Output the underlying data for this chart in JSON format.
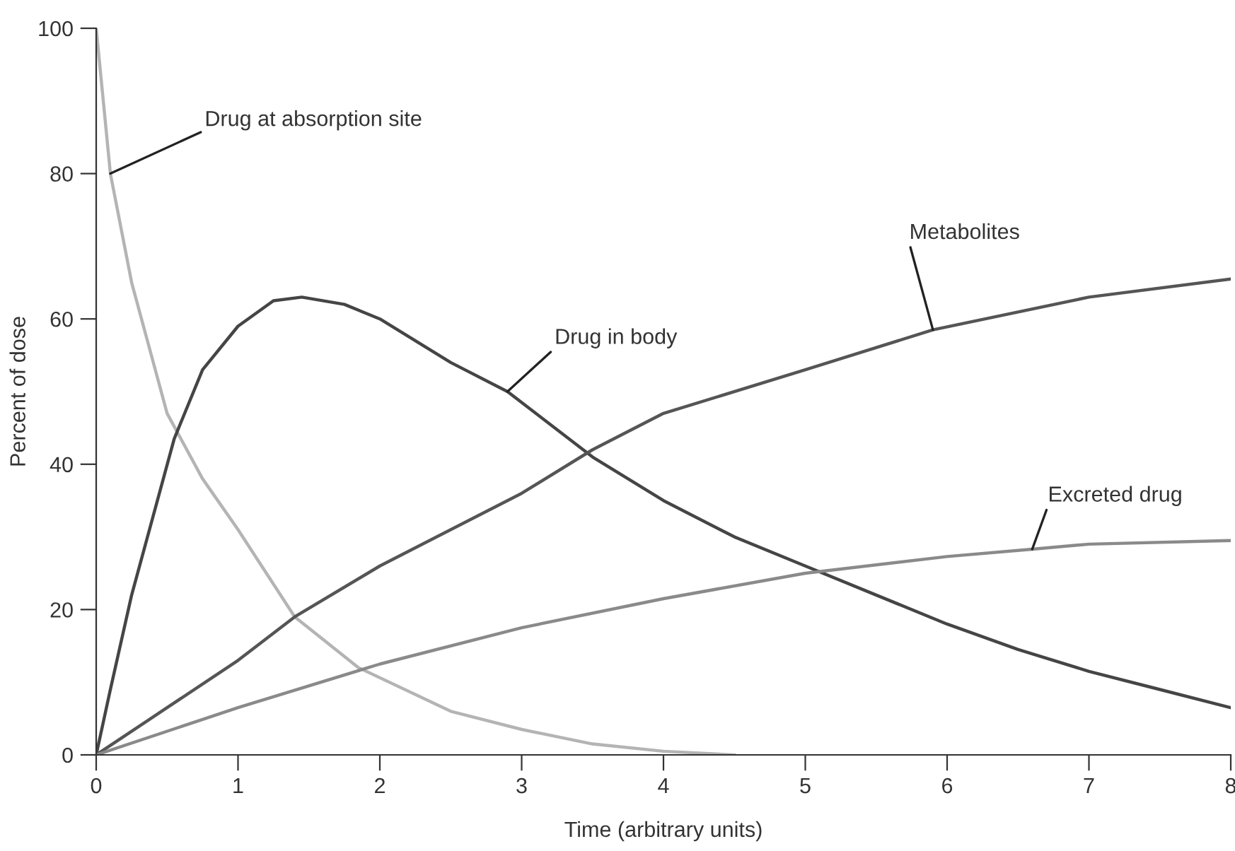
{
  "chart_data": {
    "type": "line",
    "xlabel": "Time (arbitrary units)",
    "ylabel": "Percent of dose",
    "xlim": [
      0,
      8
    ],
    "ylim": [
      0,
      100
    ],
    "xticks": [
      0,
      1,
      2,
      3,
      4,
      5,
      6,
      7,
      8
    ],
    "yticks": [
      0,
      20,
      40,
      60,
      80,
      100
    ],
    "grid": false,
    "marker": "none",
    "line_style": "solid",
    "series": [
      {
        "color": "#b4b4b4",
        "x": [
          0,
          0.1,
          0.25,
          0.5,
          0.75,
          1,
          1.4,
          1.85,
          2.5,
          3,
          3.5,
          4,
          4.5
        ],
        "values": [
          100,
          80,
          65,
          47,
          38,
          31,
          19,
          12,
          6,
          3.5,
          1.5,
          0.5,
          0
        ]
      },
      {
        "color": "#454545",
        "x": [
          0,
          0.1,
          0.25,
          0.55,
          0.75,
          1,
          1.25,
          1.45,
          1.75,
          2,
          2.5,
          2.9,
          3.5,
          4,
          4.5,
          5,
          5.5,
          6,
          6.5,
          7,
          7.5,
          8
        ],
        "values": [
          0,
          9,
          22,
          43.5,
          53,
          59,
          62.5,
          63,
          62,
          60,
          54,
          50,
          41,
          35,
          30,
          26,
          22,
          18,
          14.5,
          11.5,
          9,
          6.5
        ]
      },
      {
        "color": "#555555",
        "x": [
          0,
          0.5,
          1,
          1.4,
          2,
          3,
          3.5,
          4,
          5,
          5.9,
          7,
          8
        ],
        "values": [
          0,
          6.5,
          13,
          19,
          26,
          36,
          42,
          47,
          53,
          58.5,
          63,
          65.5
        ]
      },
      {
        "color": "#8a8a8a",
        "x": [
          0,
          1,
          2,
          3,
          4,
          5,
          6,
          6.6,
          7,
          8
        ],
        "values": [
          0,
          6.5,
          12.5,
          17.5,
          21.5,
          25,
          27.3,
          28.3,
          29,
          29.5
        ]
      }
    ],
    "annotations": [
      {
        "text": "Drug at absorption site",
        "x": 0.1,
        "y": 80
      },
      {
        "text": "Drug in body",
        "x": 2.9,
        "y": 50
      },
      {
        "text": "Metabolites",
        "x": 5.9,
        "y": 58.5
      },
      {
        "text": "Excreted drug",
        "x": 6.6,
        "y": 28.3
      }
    ]
  }
}
